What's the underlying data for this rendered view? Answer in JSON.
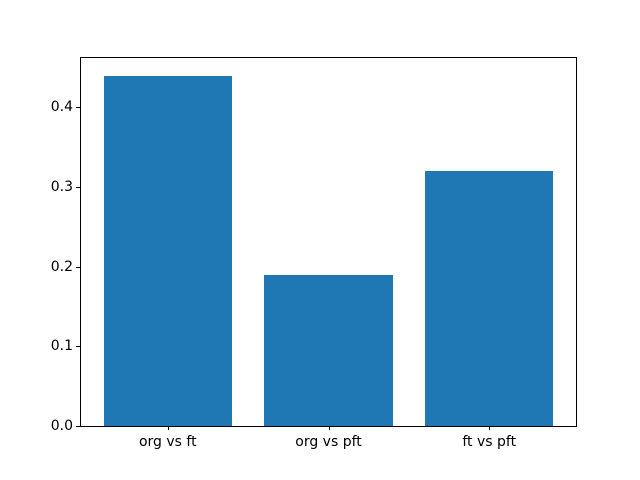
{
  "chart_data": {
    "type": "bar",
    "categories": [
      "org vs ft",
      "org vs pft",
      "ft vs pft"
    ],
    "values": [
      0.44,
      0.19,
      0.32
    ],
    "title": "",
    "xlabel": "",
    "ylabel": "",
    "ylim": [
      0,
      0.462
    ],
    "xlim": [
      -0.54,
      2.54
    ],
    "yticks": [
      0.0,
      0.1,
      0.2,
      0.3,
      0.4
    ],
    "ytick_labels": [
      "0.0",
      "0.1",
      "0.2",
      "0.3",
      "0.4"
    ],
    "bar_width": 0.8,
    "bar_color": "#1f77b4",
    "axes_color": "#000000",
    "background": "#ffffff",
    "grid": false,
    "legend": false
  }
}
